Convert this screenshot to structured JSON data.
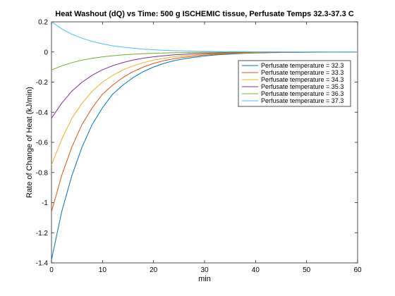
{
  "chart_data": {
    "type": "line",
    "title": "Heat Washout (dQ) vs Time: 500 g ISCHEMIC tissue, Perfusate Temps 32.3-37.3 C",
    "xlabel": "min",
    "ylabel": "Rate of Change of Heat (kJ/min)",
    "xlim": [
      0,
      60
    ],
    "ylim": [
      -1.4,
      0.2
    ],
    "xticks": [
      0,
      10,
      20,
      30,
      40,
      50,
      60
    ],
    "yticks": [
      0.2,
      0,
      -0.2,
      -0.4,
      -0.6,
      -0.8,
      -1,
      -1.2,
      -1.4
    ],
    "ytick_labels": [
      "0.2",
      "0",
      "-0.2",
      "-0.4",
      "-0.6",
      "-0.8",
      "-1",
      "-1.2",
      "-1.4"
    ],
    "grid": false,
    "legend_position": "upper-right",
    "x": [
      0,
      2,
      4,
      6,
      8,
      10,
      12,
      14,
      16,
      18,
      20,
      22,
      24,
      26,
      28,
      30,
      32,
      34,
      36,
      38,
      40,
      42,
      44,
      46,
      48,
      50,
      52,
      54,
      56,
      58,
      60
    ],
    "series": [
      {
        "name": "Perfusate temperature = 32.3",
        "color": "#0072BD",
        "values": [
          -1.38,
          -1.06,
          -0.82,
          -0.63,
          -0.48,
          -0.37,
          -0.28,
          -0.22,
          -0.17,
          -0.13,
          -0.1,
          -0.076,
          -0.058,
          -0.045,
          -0.035,
          -0.027,
          -0.02,
          -0.016,
          -0.012,
          -0.009,
          -0.007,
          -0.005,
          -0.004,
          -0.003,
          -0.003,
          -0.002,
          -0.002,
          -0.001,
          -0.001,
          -0.001,
          -0.001
        ]
      },
      {
        "name": "Perfusate temperature = 33.3",
        "color": "#D95319",
        "values": [
          -1.06,
          -0.82,
          -0.63,
          -0.48,
          -0.37,
          -0.28,
          -0.22,
          -0.17,
          -0.13,
          -0.1,
          -0.076,
          -0.058,
          -0.045,
          -0.035,
          -0.027,
          -0.02,
          -0.016,
          -0.012,
          -0.009,
          -0.007,
          -0.005,
          -0.004,
          -0.003,
          -0.003,
          -0.002,
          -0.002,
          -0.001,
          -0.001,
          -0.001,
          -0.001,
          -0.001
        ]
      },
      {
        "name": "Perfusate temperature = 34.3",
        "color": "#EDB120",
        "values": [
          -0.75,
          -0.58,
          -0.44,
          -0.34,
          -0.26,
          -0.2,
          -0.155,
          -0.119,
          -0.092,
          -0.071,
          -0.054,
          -0.042,
          -0.032,
          -0.025,
          -0.019,
          -0.015,
          -0.011,
          -0.009,
          -0.007,
          -0.005,
          -0.004,
          -0.003,
          -0.002,
          -0.002,
          -0.001,
          -0.001,
          -0.001,
          -0.001,
          -0.001,
          0,
          0
        ]
      },
      {
        "name": "Perfusate temperature = 35.3",
        "color": "#7E2F8E",
        "values": [
          -0.44,
          -0.34,
          -0.26,
          -0.2,
          -0.154,
          -0.118,
          -0.091,
          -0.07,
          -0.054,
          -0.041,
          -0.032,
          -0.025,
          -0.019,
          -0.015,
          -0.011,
          -0.009,
          -0.007,
          -0.005,
          -0.004,
          -0.003,
          -0.002,
          -0.002,
          -0.001,
          -0.001,
          -0.001,
          -0.001,
          0,
          0,
          0,
          0,
          0
        ]
      },
      {
        "name": "Perfusate temperature = 36.3",
        "color": "#77AC30",
        "values": [
          -0.12,
          -0.092,
          -0.071,
          -0.054,
          -0.042,
          -0.032,
          -0.025,
          -0.019,
          -0.015,
          -0.011,
          -0.009,
          -0.007,
          -0.005,
          -0.004,
          -0.003,
          -0.002,
          -0.002,
          -0.001,
          -0.001,
          -0.001,
          -0.001,
          0,
          0,
          0,
          0,
          0,
          0,
          0,
          0,
          0,
          0
        ]
      },
      {
        "name": "Perfusate temperature = 37.3",
        "color": "#4DBEEE",
        "values": [
          0.2,
          0.154,
          0.118,
          0.091,
          0.07,
          0.054,
          0.041,
          0.032,
          0.025,
          0.019,
          0.015,
          0.011,
          0.009,
          0.007,
          0.005,
          0.004,
          0.003,
          0.002,
          0.002,
          0.001,
          0.001,
          0.001,
          0.001,
          0,
          0,
          0,
          0,
          0,
          0,
          0,
          0
        ]
      }
    ]
  }
}
